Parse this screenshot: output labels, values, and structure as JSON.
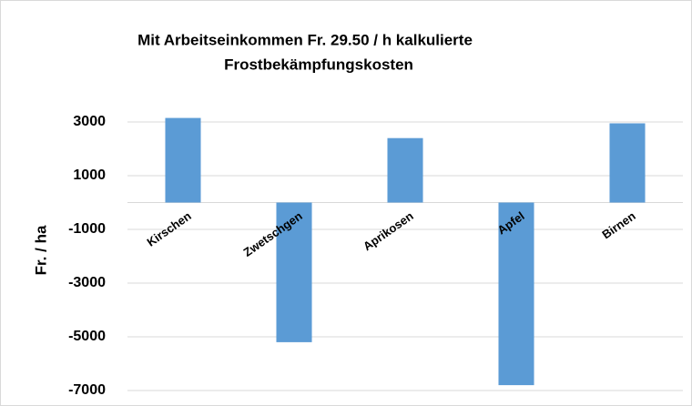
{
  "chart_data": {
    "type": "bar",
    "title": [
      "Mit Arbeitseinkommen Fr. 29.50 / h kalkulierte",
      "Frostbekämpfungskosten"
    ],
    "y_label": "Fr. / ha",
    "categories": [
      "Kirschen",
      "Zwetschgen",
      "Aprikosen",
      "Apfel",
      "Birnen"
    ],
    "values": [
      3150,
      -5200,
      2400,
      -6800,
      2950
    ],
    "color": "#5b9bd5",
    "ylim": [
      -7000,
      3500
    ],
    "yticks": [
      -7000,
      -5000,
      -3000,
      -1000,
      1000,
      3000
    ],
    "grid": true
  }
}
